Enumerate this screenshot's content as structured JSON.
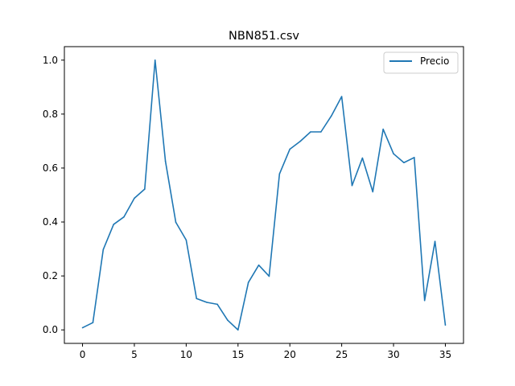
{
  "chart_data": {
    "type": "line",
    "title": "NBN851.csv",
    "xlabel": "",
    "ylabel": "",
    "xlim": [
      -1.75,
      36.75
    ],
    "ylim": [
      -0.05,
      1.05
    ],
    "xticks": [
      0,
      5,
      10,
      15,
      20,
      25,
      30,
      35
    ],
    "yticks": [
      0.0,
      0.2,
      0.4,
      0.6,
      0.8,
      1.0
    ],
    "xtick_labels": [
      "0",
      "5",
      "10",
      "15",
      "20",
      "25",
      "30",
      "35"
    ],
    "ytick_labels": [
      "0.0",
      "0.2",
      "0.4",
      "0.6",
      "0.8",
      "1.0"
    ],
    "grid": false,
    "legend_position": "top-right",
    "series": [
      {
        "name": "Precio",
        "color": "#1f77b4",
        "x": [
          0,
          1,
          2,
          3,
          4,
          5,
          6,
          7,
          8,
          9,
          10,
          11,
          12,
          13,
          14,
          15,
          16,
          17,
          18,
          19,
          20,
          21,
          22,
          23,
          24,
          25,
          26,
          27,
          28,
          29,
          30,
          31,
          32,
          33,
          34,
          35
        ],
        "values": [
          0.008,
          0.027,
          0.298,
          0.391,
          0.419,
          0.488,
          0.522,
          1.0,
          0.625,
          0.399,
          0.333,
          0.116,
          0.102,
          0.095,
          0.036,
          0.0,
          0.176,
          0.24,
          0.199,
          0.578,
          0.67,
          0.699,
          0.734,
          0.734,
          0.793,
          0.865,
          0.535,
          0.637,
          0.512,
          0.744,
          0.653,
          0.62,
          0.639,
          0.109,
          0.328,
          0.018
        ]
      }
    ]
  }
}
